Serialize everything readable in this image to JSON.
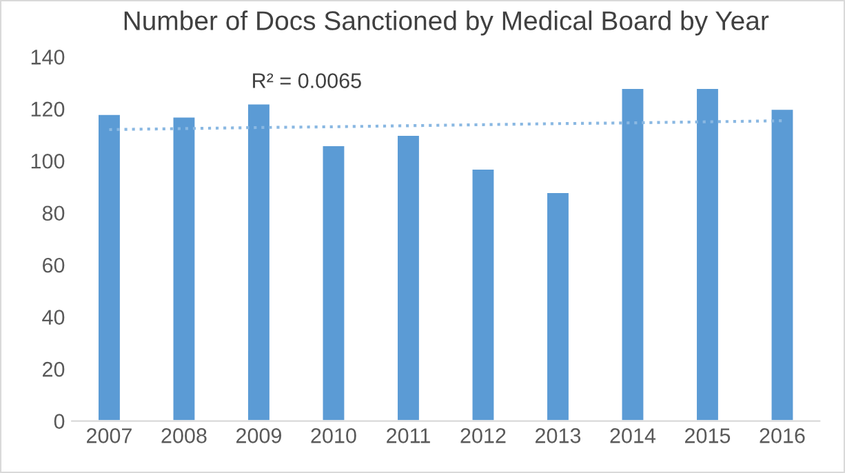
{
  "chart_data": {
    "type": "bar",
    "title": "Number of Docs Sanctioned by Medical Board by Year",
    "categories": [
      "2007",
      "2008",
      "2009",
      "2010",
      "2011",
      "2012",
      "2013",
      "2014",
      "2015",
      "2016"
    ],
    "series": [
      {
        "color": "#5b9bd5",
        "values": [
          118,
          117,
          122,
          106,
          110,
          97,
          88,
          128,
          128,
          120
        ]
      },
      {
        "type": "line",
        "color": "#8ab8e2",
        "line_style": "dotted",
        "values": [
          112,
          112.4,
          112.8,
          113.1,
          113.5,
          113.9,
          114.3,
          114.6,
          115,
          115.4
        ]
      }
    ],
    "annotations": [
      "R² = 0.0065"
    ],
    "ylim": [
      0,
      140
    ],
    "yticks": [
      0,
      20,
      40,
      60,
      80,
      100,
      120,
      140
    ],
    "grid": false,
    "legend": false
  }
}
